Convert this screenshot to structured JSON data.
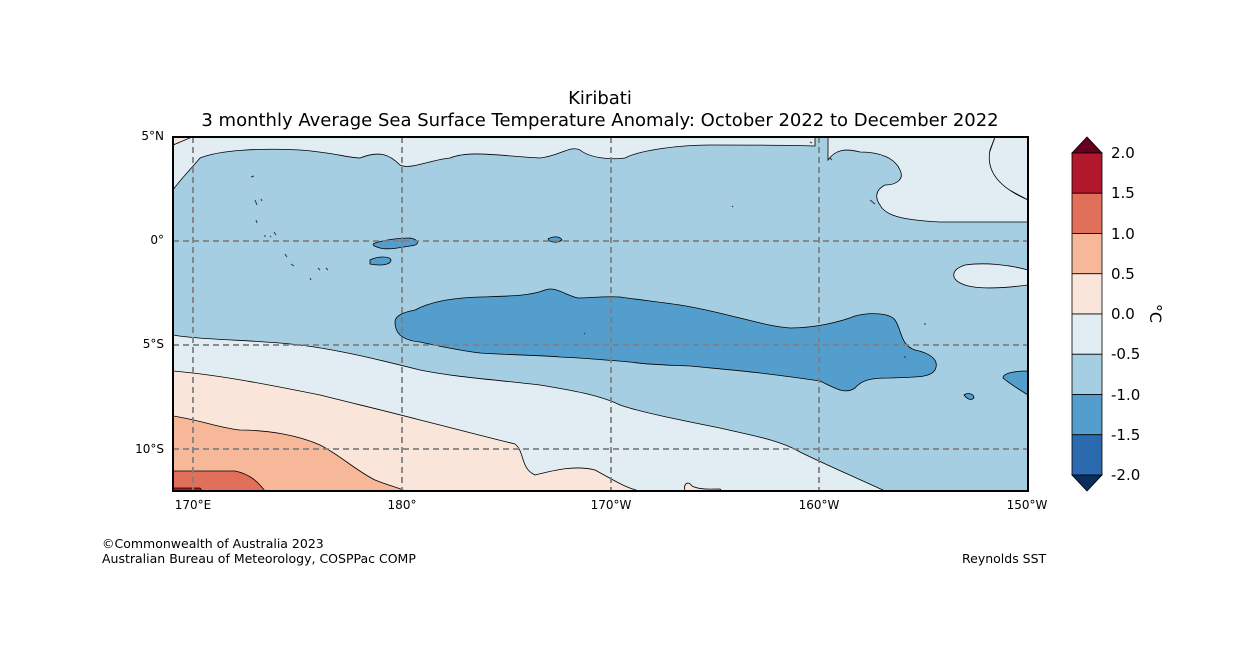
{
  "title": {
    "line1": "Kiribati",
    "line2": "3 monthly Average Sea Surface Temperature Anomaly: October 2022 to December 2022"
  },
  "map": {
    "lat_labels": [
      "5°N",
      "0°",
      "5°S",
      "10°S"
    ],
    "lon_labels": [
      "170°E",
      "180°",
      "170°W",
      "160°W",
      "150°W"
    ]
  },
  "colorbar": {
    "unit": "°C",
    "tick_labels": [
      "2.0",
      "1.5",
      "1.0",
      "0.5",
      "0.0",
      "-0.5",
      "-1.0",
      "-1.5",
      "-2.0"
    ],
    "colors": {
      "above_2.0": "#67001f",
      "1.5_to_2.0": "#b2182b",
      "1.0_to_1.5": "#e07059",
      "0.5_to_1.0": "#f6b899",
      "0.0_to_0.5": "#f9e5da",
      "-0.5_to_0.0": "#e1edf3",
      "-1.0_to_-0.5": "#a6cee3",
      "-1.5_to_-1.0": "#539ecd",
      "-2.0_to_-1.5": "#2b6aaf",
      "below_-2.0": "#0a2e5c"
    }
  },
  "credits": {
    "copyright": "©Commonwealth of Australia 2023",
    "agency": "Australian Bureau of Meteorology, COSPPac COMP",
    "source": "Reynolds SST"
  }
}
